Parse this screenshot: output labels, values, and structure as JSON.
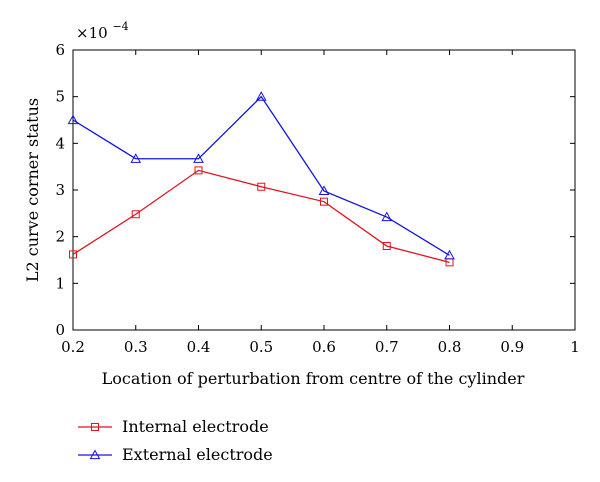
{
  "chart_data": {
    "type": "line",
    "title": "",
    "xlabel": "Location of perturbation from centre of the cylinder",
    "ylabel": "L2 curve corner status",
    "y_multiplier": {
      "base": "×10",
      "exponent": "−4"
    },
    "xlim": [
      0.2,
      1.0
    ],
    "ylim": [
      0,
      6
    ],
    "x_ticks": [
      0.2,
      0.3,
      0.4,
      0.5,
      0.6,
      0.7,
      0.8,
      0.9,
      1.0
    ],
    "x_tick_labels": [
      "0.2",
      "0.3",
      "0.4",
      "0.5",
      "0.6",
      "0.7",
      "0.8",
      "0.9",
      "1"
    ],
    "y_ticks": [
      0,
      1,
      2,
      3,
      4,
      5,
      6
    ],
    "y_tick_labels": [
      "0",
      "1",
      "2",
      "3",
      "4",
      "5",
      "6"
    ],
    "grid": false,
    "legend_placement": "below",
    "x": [
      0.2,
      0.3,
      0.4,
      0.5,
      0.6,
      0.7,
      0.8
    ],
    "series": [
      {
        "name": "Internal electrode",
        "values": [
          1.62,
          2.48,
          3.42,
          3.07,
          2.75,
          1.8,
          1.45
        ],
        "color": "#e0141e",
        "marker": "square"
      },
      {
        "name": "External electrode",
        "values": [
          4.5,
          3.67,
          3.67,
          5.0,
          2.98,
          2.42,
          1.6
        ],
        "color": "#1414e0",
        "marker": "triangle"
      }
    ]
  }
}
